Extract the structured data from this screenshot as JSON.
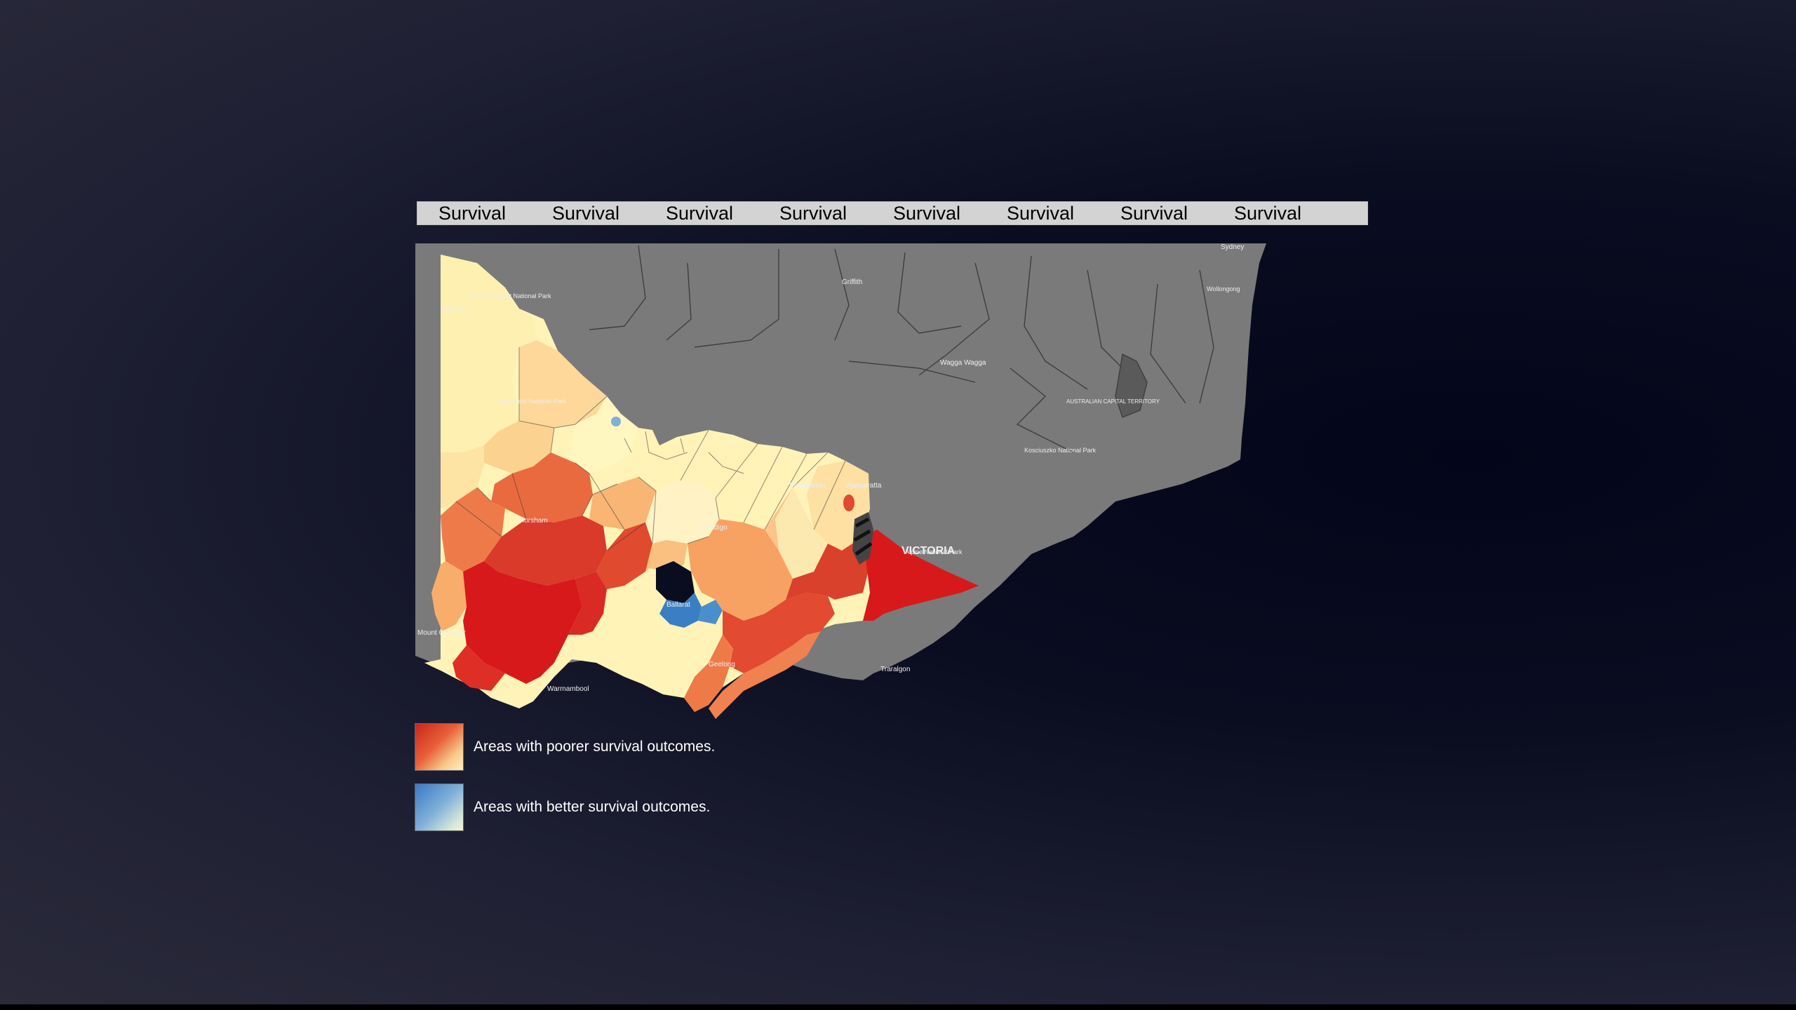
{
  "tabs": [
    "Survival",
    "Survival",
    "Survival",
    "Survival",
    "Survival",
    "Survival",
    "Survival",
    "Survival"
  ],
  "map": {
    "region_label": "VICTORIA",
    "place_labels": [
      "Murray-Sunset National Park",
      "Wyperfeld National Park",
      "Horsham",
      "Bendigo",
      "Shepparton",
      "Wangaratta",
      "Ballarat",
      "Geelong",
      "Warrnambool",
      "Traralgon",
      "Alpine National Park",
      "Griffith",
      "Wagga Wagga",
      "Kosciuszko National Park",
      "Wollongong",
      "Sydney",
      "Mildura",
      "Mount Gambier",
      "AUSTRALIAN CAPITAL TERRITORY"
    ],
    "colors": {
      "outside_state": "#7a7a7a",
      "very_poor": "#d7191c",
      "poor": "#ea6a40",
      "moderate": "#f9ad6a",
      "slight": "#fdd89a",
      "neutral": "#fff3b8",
      "better": "#3a7fc4",
      "water": "#0a0c20"
    }
  },
  "legend": [
    {
      "label": "Areas with poorer survival outcomes.",
      "gradient": [
        "#c8261c",
        "#f8c88a"
      ]
    },
    {
      "label": "Areas with better survival outcomes.",
      "gradient": [
        "#3a78c4",
        "#f3f3d8"
      ]
    }
  ]
}
